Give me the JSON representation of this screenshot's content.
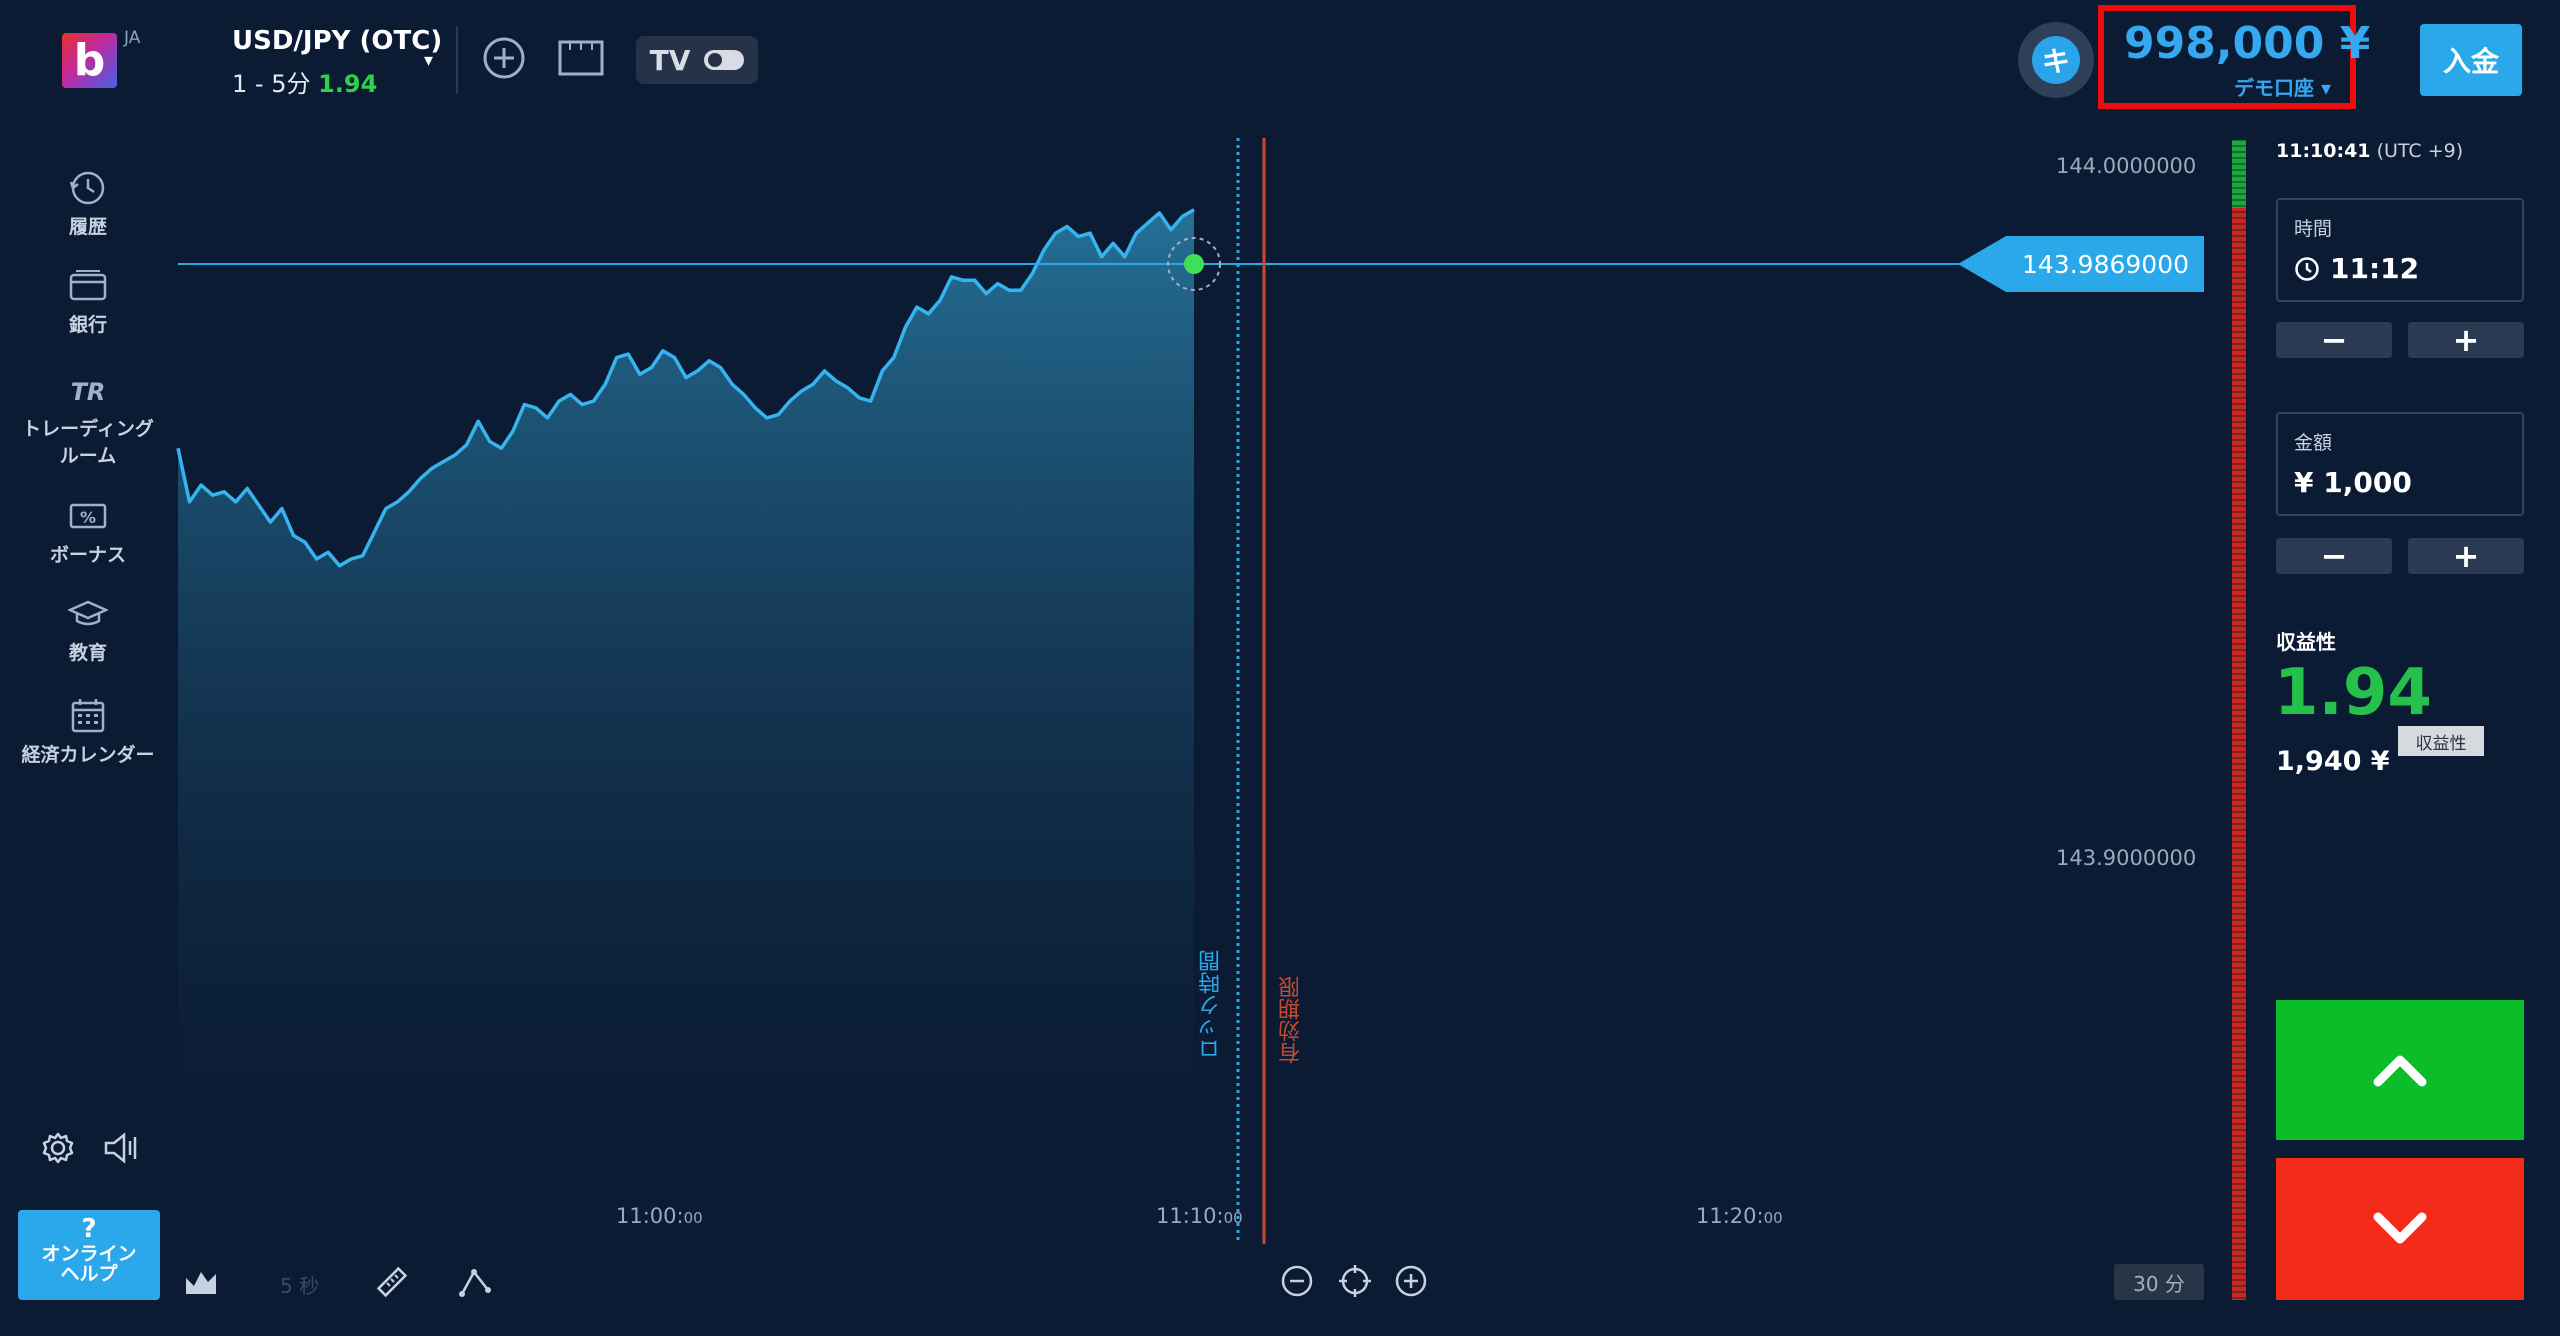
{
  "header": {
    "logo_letter": "b",
    "language": "JA",
    "asset": {
      "name": "USD/JPY (OTC)",
      "range": "1 - 5分",
      "payout": "1.94"
    },
    "avatar_letter": "キ",
    "balance": "998,000 ¥",
    "account_type": "デモ口座 ▾",
    "deposit_label": "入金",
    "tv_label": "TV"
  },
  "sidebar": {
    "items": [
      {
        "label": "履歴",
        "icon": "history-icon"
      },
      {
        "label": "銀行",
        "icon": "wallet-icon"
      },
      {
        "label": "トレーディング",
        "label2": "ルーム",
        "icon": "trading-room-icon"
      },
      {
        "label": "ボーナス",
        "icon": "bonus-icon"
      },
      {
        "label": "教育",
        "icon": "graduation-cap-icon"
      },
      {
        "label": "経済カレンダー",
        "icon": "calendar-icon"
      }
    ],
    "help": {
      "q": "?",
      "line1": "オンライン",
      "line2": "ヘルプ"
    }
  },
  "chart_data": {
    "type": "area",
    "symbol": "USD/JPY (OTC)",
    "y_ticks": [
      "144.0000000",
      "143.9000000"
    ],
    "ylim": [
      143.82,
      144.026
    ],
    "current_price": "143.9869000",
    "x_ticks": [
      {
        "main": "11:00:",
        "sec": "00"
      },
      {
        "main": "11:10:",
        "sec": "00"
      },
      {
        "main": "11:20:",
        "sec": "00"
      }
    ],
    "x_start": "10:51:50",
    "x_end": "11:10:41",
    "lock_label": "ロック時間",
    "expiry_label": "有効期限",
    "values": [
      143.916,
      143.9,
      143.905,
      143.902,
      143.903,
      143.9,
      143.904,
      143.899,
      143.894,
      143.898,
      143.89,
      143.888,
      143.883,
      143.885,
      143.881,
      143.883,
      143.884,
      143.891,
      143.898,
      143.9,
      143.903,
      143.907,
      143.91,
      143.912,
      143.914,
      143.917,
      143.924,
      143.918,
      143.916,
      143.921,
      143.929,
      143.928,
      143.925,
      143.93,
      143.932,
      143.929,
      143.93,
      143.935,
      143.943,
      143.944,
      143.938,
      143.94,
      143.945,
      143.943,
      143.937,
      143.939,
      143.942,
      143.94,
      143.935,
      143.932,
      143.928,
      143.925,
      143.926,
      143.93,
      143.933,
      143.935,
      143.939,
      143.936,
      143.934,
      143.931,
      143.93,
      143.939,
      143.943,
      143.952,
      143.958,
      143.956,
      143.96,
      143.967,
      143.966,
      143.966,
      143.962,
      143.965,
      143.963,
      143.963,
      143.968,
      143.975,
      143.98,
      143.982,
      143.979,
      143.98,
      143.973,
      143.977,
      143.973,
      143.98,
      143.983,
      143.986,
      143.981,
      143.985,
      143.987
    ],
    "timeframe": "5 秒",
    "period": "30 分"
  },
  "trade_panel": {
    "clock": "11:10:41",
    "timezone": "(UTC +9)",
    "time": {
      "label": "時間",
      "value": "11:12"
    },
    "amount": {
      "label": "金額",
      "value": "¥ 1,000"
    },
    "minus": "−",
    "plus": "+",
    "profit_label": "収益性",
    "profit_value": "1.94",
    "profit_amount": "1,940 ¥",
    "tooltip": "収益性"
  }
}
